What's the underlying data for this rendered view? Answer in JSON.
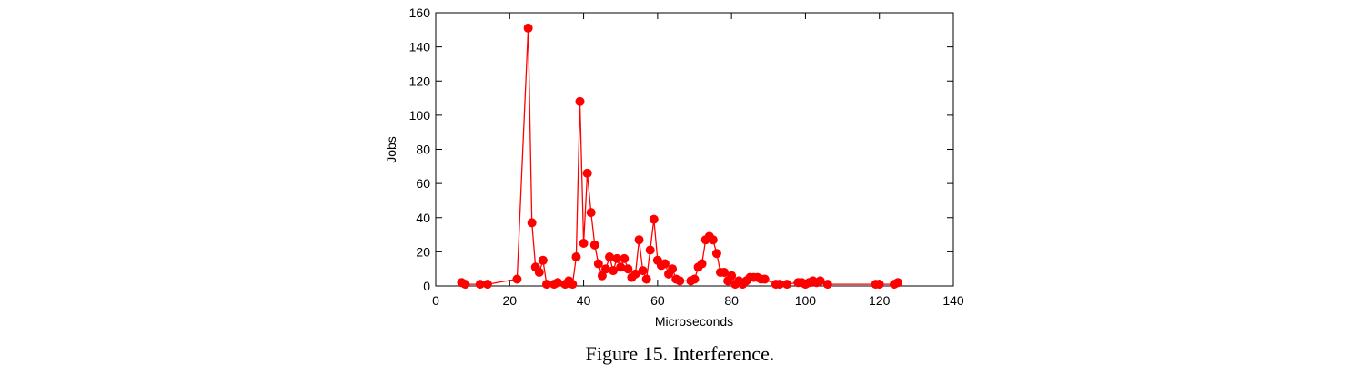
{
  "caption": "Figure 15. Interference.",
  "colors": {
    "series": "#ff0000",
    "axis": "#000000"
  },
  "chart_data": {
    "type": "line",
    "xlabel": "Microseconds",
    "ylabel": "Jobs",
    "xlim": [
      0,
      140
    ],
    "ylim": [
      0,
      160
    ],
    "xticks": [
      0,
      20,
      40,
      60,
      80,
      100,
      120,
      140
    ],
    "yticks": [
      0,
      20,
      40,
      60,
      80,
      100,
      120,
      140,
      160
    ],
    "grid": false,
    "series": [
      {
        "markers": true,
        "x": [
          7,
          8,
          12,
          14,
          22,
          25,
          26,
          27,
          28,
          29,
          30,
          32,
          33,
          35,
          36,
          37,
          38,
          39,
          40,
          41,
          42,
          43,
          44,
          45,
          46,
          47,
          48,
          49,
          50,
          51,
          52,
          53,
          54,
          55,
          56,
          57,
          58,
          59,
          60,
          61,
          62,
          63,
          64,
          65,
          66,
          69,
          70,
          71,
          72,
          73,
          74,
          75,
          76,
          77,
          78,
          79,
          80,
          81,
          82,
          83,
          84,
          85,
          86,
          87,
          88,
          89,
          92,
          93,
          95,
          98,
          99,
          100,
          101,
          102,
          103,
          104,
          106,
          119,
          120,
          124,
          125
        ],
        "y": [
          2,
          1,
          1,
          1,
          4,
          151,
          37,
          11,
          8,
          15,
          1,
          1,
          2,
          1,
          3,
          1,
          17,
          108,
          25,
          66,
          43,
          24,
          13,
          6,
          10,
          17,
          9,
          16,
          11,
          16,
          10,
          5,
          7,
          27,
          9,
          4,
          21,
          39,
          15,
          12,
          13,
          7,
          10,
          4,
          3,
          3,
          4,
          11,
          13,
          27,
          29,
          27,
          19,
          8,
          8,
          3,
          6,
          1,
          3,
          1,
          3,
          5,
          5,
          5,
          4,
          4,
          1,
          1,
          1,
          2,
          2,
          1,
          2,
          3,
          2,
          3,
          1,
          1,
          1,
          1,
          2
        ]
      }
    ]
  }
}
